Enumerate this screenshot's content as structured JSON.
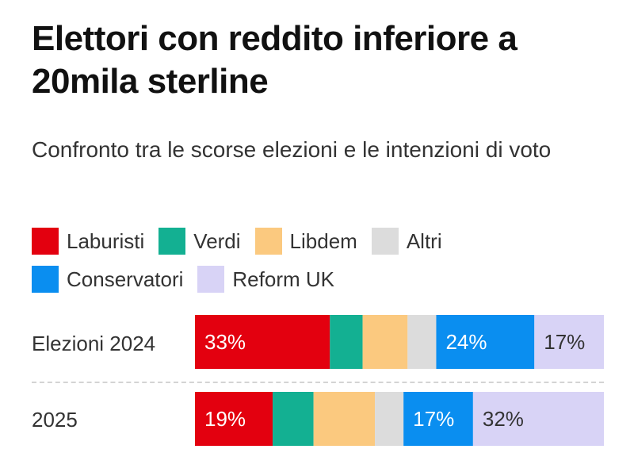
{
  "title": "Elettori con reddito inferiore a 20mila sterline",
  "subtitle": "Confronto tra le scorse elezioni e le intenzioni di voto",
  "legend": [
    {
      "label": "Laburisti",
      "color": "#e3000f",
      "icon": "square-swatch"
    },
    {
      "label": "Verdi",
      "color": "#13b092",
      "icon": "square-swatch"
    },
    {
      "label": "Libdem",
      "color": "#fbc97f",
      "icon": "square-swatch"
    },
    {
      "label": "Altri",
      "color": "#dcdcdc",
      "icon": "square-swatch"
    },
    {
      "label": "Conservatori",
      "color": "#0a8ef0",
      "icon": "square-swatch"
    },
    {
      "label": "Reform UK",
      "color": "#d8d3f6",
      "icon": "square-swatch"
    }
  ],
  "chart_data": {
    "type": "bar",
    "orientation": "horizontal",
    "stacked": true,
    "normalized": true,
    "title": "Elettori con reddito inferiore a 20mila sterline",
    "subtitle": "Confronto tra le scorse elezioni e le intenzioni di voto",
    "categories": [
      "Elezioni 2024",
      "2025"
    ],
    "series": [
      {
        "name": "Laburisti",
        "color": "#e3000f",
        "values": [
          33,
          19
        ],
        "labels": [
          "33%",
          "19%"
        ]
      },
      {
        "name": "Verdi",
        "color": "#13b092",
        "values": [
          8,
          10
        ],
        "labels": [
          "",
          ""
        ]
      },
      {
        "name": "Libdem",
        "color": "#fbc97f",
        "values": [
          11,
          15
        ],
        "labels": [
          "",
          ""
        ]
      },
      {
        "name": "Altri",
        "color": "#dcdcdc",
        "values": [
          7,
          7
        ],
        "labels": [
          "",
          ""
        ]
      },
      {
        "name": "Conservatori",
        "color": "#0a8ef0",
        "values": [
          24,
          17
        ],
        "labels": [
          "24%",
          "17%"
        ]
      },
      {
        "name": "Reform UK",
        "color": "#d8d3f6",
        "values": [
          17,
          32
        ],
        "labels": [
          "17%",
          "32%"
        ]
      }
    ],
    "xlabel": "",
    "ylabel": "",
    "xlim": [
      0,
      100
    ],
    "grid": false,
    "legend": "top"
  }
}
